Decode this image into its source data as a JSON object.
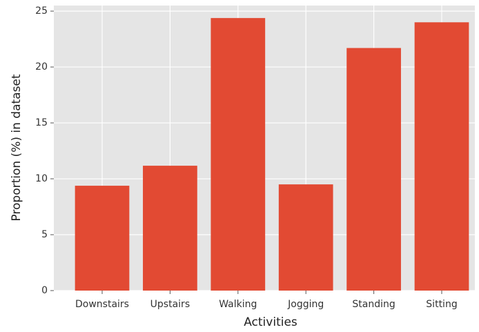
{
  "chart_data": {
    "type": "bar",
    "xlabel": "Activities",
    "ylabel": "Proportion (%) in dataset",
    "categories": [
      "Downstairs",
      "Upstairs",
      "Walking",
      "Jogging",
      "Standing",
      "Sitting"
    ],
    "values": [
      9.38,
      11.17,
      24.38,
      9.5,
      21.7,
      24.0
    ],
    "color": "#E24A33",
    "ylim": [
      0,
      25.5
    ],
    "yticks": [
      0,
      5,
      10,
      15,
      20,
      25
    ],
    "grid": true
  }
}
